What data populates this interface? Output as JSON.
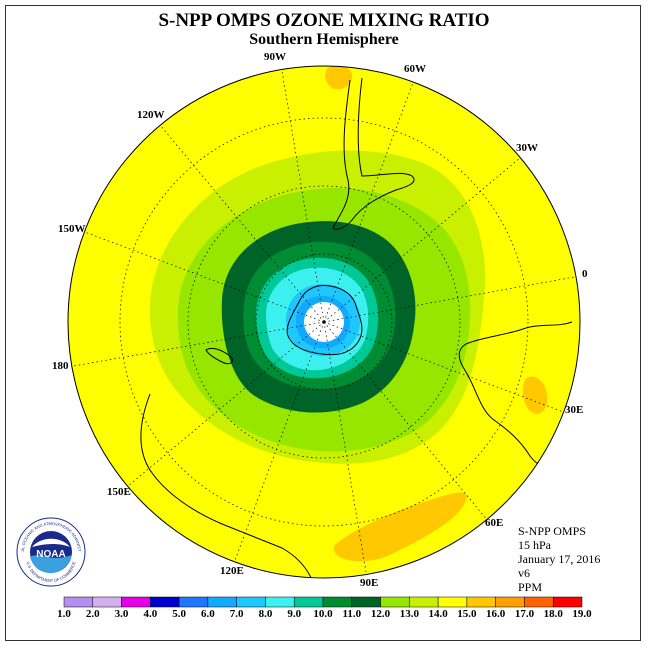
{
  "title": "S-NPP OMPS OZONE MIXING RATIO",
  "subtitle": "Southern Hemisphere",
  "longitude_labels": [
    "90W",
    "60W",
    "30W",
    "0",
    "30E",
    "60E",
    "90E",
    "120E",
    "150E",
    "180",
    "150W",
    "120W"
  ],
  "info": {
    "instrument": "S-NPP OMPS",
    "pressure": "15 hPa",
    "date": "January 17, 2016",
    "version": "v6",
    "units": "PPM"
  },
  "logo": {
    "text": "NOAA",
    "arc_text": "NATIONAL OCEANIC AND ATMOSPHERIC ADMINISTRATION",
    "bottom_text": "U.S. DEPARTMENT OF COMMERCE"
  },
  "colorbar": {
    "ticks": [
      "1.0",
      "2.0",
      "3.0",
      "4.0",
      "5.0",
      "6.0",
      "7.0",
      "8.0",
      "9.0",
      "10.0",
      "11.0",
      "12.0",
      "13.0",
      "14.0",
      "15.0",
      "16.0",
      "17.0",
      "18.0",
      "19.0"
    ],
    "colors": [
      "#b490ee",
      "#d2b0f0",
      "#e600e6",
      "#0000cd",
      "#1e78ff",
      "#12aaff",
      "#1ec8ff",
      "#3cf0f0",
      "#00c896",
      "#008c32",
      "#006428",
      "#96e600",
      "#c8f000",
      "#ffff00",
      "#ffc800",
      "#ffa000",
      "#ff6400",
      "#ff0000",
      "#8c5a32"
    ]
  },
  "contour_levels_ppm": [
    13,
    12,
    11,
    10,
    9,
    8,
    7,
    6
  ]
}
